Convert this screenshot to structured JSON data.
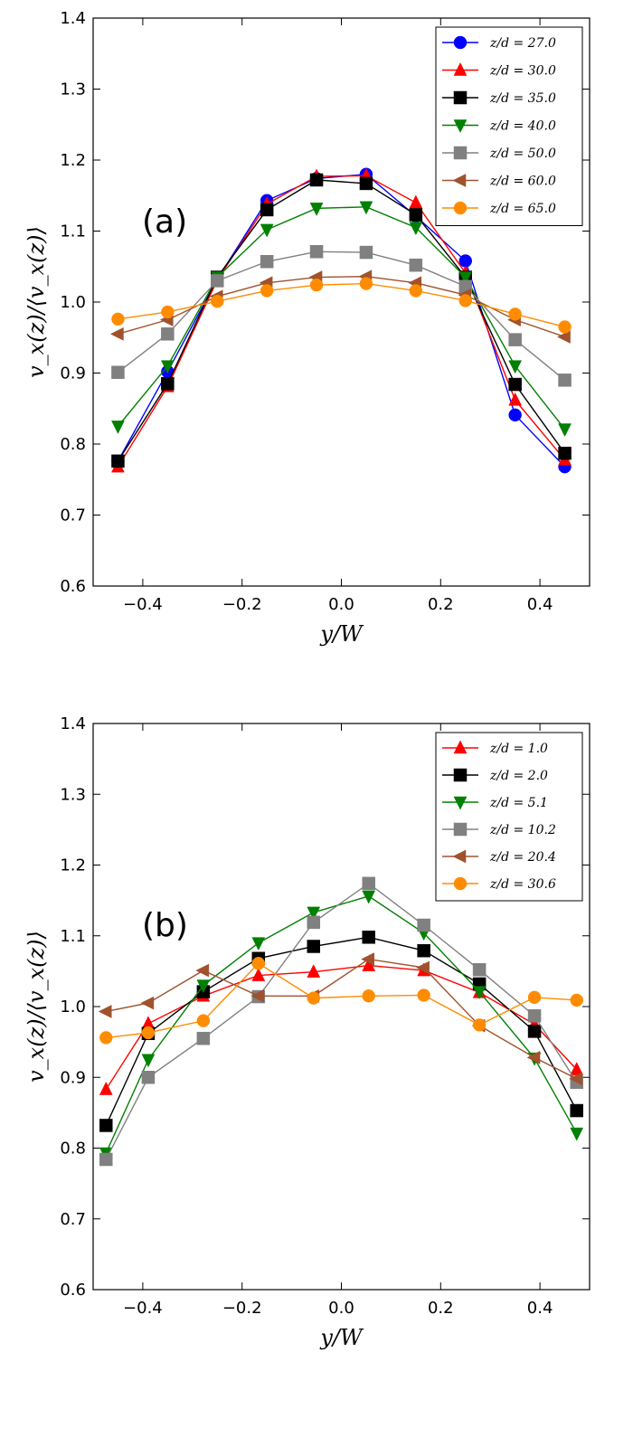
{
  "chart_data": [
    {
      "type": "line",
      "panel_label": "(a)",
      "xlabel": "y/W",
      "ylabel": "v_x(z)/⟨v_x(z)⟩",
      "xlim": [
        -0.5,
        0.5
      ],
      "ylim": [
        0.6,
        1.4
      ],
      "xticks": [
        -0.4,
        -0.2,
        0.0,
        0.2,
        0.4
      ],
      "xtick_labels": [
        "−0.4",
        "−0.2",
        "0.0",
        "0.2",
        "0.4"
      ],
      "yticks": [
        0.6,
        0.7,
        0.8,
        0.9,
        1.0,
        1.1,
        1.2,
        1.3,
        1.4
      ],
      "ytick_labels": [
        "0.6",
        "0.7",
        "0.8",
        "0.9",
        "1.0",
        "1.1",
        "1.2",
        "1.3",
        "1.4"
      ],
      "legend_position": "top-right",
      "x": [
        -0.45,
        -0.35,
        -0.25,
        -0.15,
        -0.05,
        0.05,
        0.15,
        0.25,
        0.35,
        0.45
      ],
      "series": [
        {
          "name": "z/d = 27.0",
          "color": "#0000ff",
          "marker": "circle",
          "values": [
            0.776,
            0.902,
            1.032,
            1.143,
            1.174,
            1.18,
            1.121,
            1.058,
            0.841,
            0.768
          ]
        },
        {
          "name": "z/d = 30.0",
          "color": "#ff0000",
          "marker": "triangle-up",
          "values": [
            0.768,
            0.881,
            1.031,
            1.138,
            1.177,
            1.178,
            1.14,
            1.041,
            0.862,
            0.778
          ]
        },
        {
          "name": "z/d = 35.0",
          "color": "#000000",
          "marker": "square",
          "values": [
            0.776,
            0.885,
            1.035,
            1.13,
            1.172,
            1.167,
            1.123,
            1.035,
            0.884,
            0.787
          ]
        },
        {
          "name": "z/d = 40.0",
          "color": "#008000",
          "marker": "triangle-down",
          "values": [
            0.825,
            0.91,
            1.035,
            1.102,
            1.132,
            1.134,
            1.105,
            1.035,
            0.91,
            0.821
          ]
        },
        {
          "name": "z/d = 50.0",
          "color": "#808080",
          "marker": "square",
          "values": [
            0.901,
            0.955,
            1.03,
            1.057,
            1.071,
            1.07,
            1.052,
            1.022,
            0.947,
            0.89
          ]
        },
        {
          "name": "z/d = 60.0",
          "color": "#a0522d",
          "marker": "triangle-left",
          "values": [
            0.955,
            0.975,
            1.008,
            1.027,
            1.035,
            1.036,
            1.027,
            1.01,
            0.975,
            0.951
          ]
        },
        {
          "name": "z/d = 65.0",
          "color": "#ff8c00",
          "marker": "circle",
          "values": [
            0.976,
            0.986,
            1.001,
            1.016,
            1.024,
            1.026,
            1.016,
            1.002,
            0.983,
            0.965
          ]
        }
      ],
      "legend_entries": [
        "z/d = 27.0",
        "z/d = 30.0",
        "z/d = 35.0",
        "z/d = 40.0",
        "z/d = 50.0",
        "z/d = 60.0",
        "z/d = 65.0"
      ]
    },
    {
      "type": "line",
      "panel_label": "(b)",
      "xlabel": "y/W",
      "ylabel": "v_x(z)/⟨v_x(z)⟩",
      "xlim": [
        -0.5,
        0.5
      ],
      "ylim": [
        0.6,
        1.4
      ],
      "xticks": [
        -0.4,
        -0.2,
        0.0,
        0.2,
        0.4
      ],
      "xtick_labels": [
        "−0.4",
        "−0.2",
        "0.0",
        "0.2",
        "0.4"
      ],
      "yticks": [
        0.6,
        0.7,
        0.8,
        0.9,
        1.0,
        1.1,
        1.2,
        1.3,
        1.4
      ],
      "ytick_labels": [
        "0.6",
        "0.7",
        "0.8",
        "0.9",
        "1.0",
        "1.1",
        "1.2",
        "1.3",
        "1.4"
      ],
      "legend_position": "top-right",
      "x": [
        -0.474,
        -0.389,
        -0.278,
        -0.167,
        -0.056,
        0.055,
        0.166,
        0.278,
        0.389,
        0.474
      ],
      "series": [
        {
          "name": "z/d = 1.0",
          "color": "#ff0000",
          "marker": "triangle-up",
          "values": [
            0.883,
            0.976,
            1.015,
            1.044,
            1.049,
            1.058,
            1.051,
            1.02,
            0.975,
            0.911
          ]
        },
        {
          "name": "z/d = 2.0",
          "color": "#000000",
          "marker": "square",
          "values": [
            0.832,
            0.962,
            1.021,
            1.068,
            1.085,
            1.098,
            1.079,
            1.032,
            0.965,
            0.853
          ]
        },
        {
          "name": "z/d = 5.1",
          "color": "#008000",
          "marker": "triangle-down",
          "values": [
            0.793,
            0.925,
            1.03,
            1.09,
            1.133,
            1.156,
            1.104,
            1.021,
            0.927,
            0.821
          ]
        },
        {
          "name": "z/d = 10.2",
          "color": "#808080",
          "marker": "square",
          "values": [
            0.784,
            0.9,
            0.955,
            1.014,
            1.119,
            1.174,
            1.115,
            1.052,
            0.987,
            0.893
          ]
        },
        {
          "name": "z/d = 20.4",
          "color": "#a0522d",
          "marker": "triangle-left",
          "values": [
            0.993,
            1.005,
            1.051,
            1.015,
            1.015,
            1.067,
            1.055,
            0.973,
            0.928,
            0.898
          ]
        },
        {
          "name": "z/d = 30.6",
          "color": "#ff8c00",
          "marker": "circle",
          "values": [
            0.956,
            0.963,
            0.98,
            1.061,
            1.012,
            1.015,
            1.016,
            0.974,
            1.013,
            1.009
          ]
        }
      ],
      "legend_entries": [
        "z/d = 1.0",
        "z/d = 2.0",
        "z/d = 5.1",
        "z/d = 10.2",
        "z/d = 20.4",
        "z/d = 30.6"
      ]
    }
  ]
}
